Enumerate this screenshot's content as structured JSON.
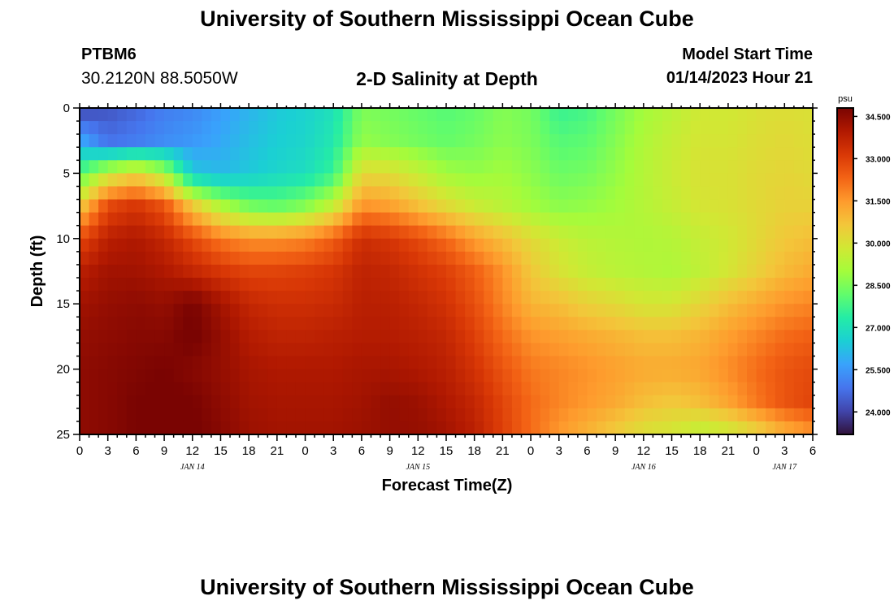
{
  "header": {
    "title": "University of Southern Mississippi Ocean Cube",
    "station": "PTBM6",
    "coordinates": "30.2120N  88.5050W",
    "subtitle": "2-D Salinity at Depth",
    "model_start_label": "Model Start Time",
    "model_start_time": "01/14/2023 Hour 21"
  },
  "footer": {
    "title": "University of Southern Mississippi Ocean Cube"
  },
  "chart_data": {
    "type": "heatmap",
    "title": "2-D Salinity at Depth",
    "xlabel": "Forecast Time(Z)",
    "ylabel": "Depth (ft)",
    "x_range_hours": [
      0,
      78
    ],
    "y_range": [
      0,
      25
    ],
    "y_ticks": [
      0,
      5,
      10,
      15,
      20,
      25
    ],
    "x_ticks": [
      {
        "h": 0,
        "label": "0"
      },
      {
        "h": 3,
        "label": "3"
      },
      {
        "h": 6,
        "label": "6"
      },
      {
        "h": 9,
        "label": "9"
      },
      {
        "h": 12,
        "label": "12"
      },
      {
        "h": 15,
        "label": "15"
      },
      {
        "h": 18,
        "label": "18"
      },
      {
        "h": 21,
        "label": "21"
      },
      {
        "h": 24,
        "label": "0"
      },
      {
        "h": 27,
        "label": "3"
      },
      {
        "h": 30,
        "label": "6"
      },
      {
        "h": 33,
        "label": "9"
      },
      {
        "h": 36,
        "label": "12"
      },
      {
        "h": 39,
        "label": "15"
      },
      {
        "h": 42,
        "label": "18"
      },
      {
        "h": 45,
        "label": "21"
      },
      {
        "h": 48,
        "label": "0"
      },
      {
        "h": 51,
        "label": "3"
      },
      {
        "h": 54,
        "label": "6"
      },
      {
        "h": 57,
        "label": "9"
      },
      {
        "h": 60,
        "label": "12"
      },
      {
        "h": 63,
        "label": "15"
      },
      {
        "h": 66,
        "label": "18"
      },
      {
        "h": 69,
        "label": "21"
      },
      {
        "h": 72,
        "label": "0"
      },
      {
        "h": 75,
        "label": "3"
      },
      {
        "h": 78,
        "label": "6"
      }
    ],
    "day_labels": [
      {
        "h": 12,
        "label": "JAN 14"
      },
      {
        "h": 36,
        "label": "JAN 15"
      },
      {
        "h": 60,
        "label": "JAN 16"
      },
      {
        "h": 75,
        "label": "JAN 17"
      }
    ],
    "colorbar": {
      "unit": "psu",
      "min": 23.2,
      "max": 34.8,
      "ticks": [
        "34.500",
        "33.000",
        "31.500",
        "30.000",
        "28.500",
        "27.000",
        "25.500",
        "24.000"
      ],
      "colors": [
        "#30123b",
        "#4145ab",
        "#4675ed",
        "#39a2fc",
        "#1bcfd4",
        "#24eca6",
        "#61fc6c",
        "#a4fc3b",
        "#d1e834",
        "#f3c63a",
        "#fe9b2d",
        "#f36315",
        "#d93806",
        "#b11901",
        "#7a0402"
      ]
    },
    "salinity_grid": {
      "x_hours": [
        0,
        3,
        6,
        9,
        12,
        15,
        18,
        21,
        24,
        27,
        30,
        33,
        36,
        39,
        42,
        45,
        48,
        51,
        54,
        57,
        60,
        63,
        66,
        69,
        72,
        75,
        78
      ],
      "depths_ft": [
        0,
        2.5,
        5,
        7.5,
        10,
        12.5,
        15,
        17.5,
        20,
        22.5,
        25
      ],
      "values": [
        [
          24.0,
          24.3,
          24.6,
          25.0,
          25.2,
          25.6,
          26.0,
          26.4,
          26.6,
          27.0,
          28.5,
          28.4,
          28.2,
          28.0,
          28.2,
          28.6,
          28.4,
          27.6,
          27.8,
          28.4,
          29.0,
          29.4,
          29.8,
          29.8,
          30.0,
          30.1,
          30.0
        ],
        [
          25.8,
          24.8,
          25.0,
          25.3,
          25.5,
          25.8,
          26.2,
          26.5,
          26.7,
          27.2,
          28.8,
          28.6,
          28.4,
          28.2,
          28.4,
          28.7,
          28.5,
          28.0,
          28.1,
          28.6,
          29.2,
          29.6,
          29.9,
          29.9,
          30.1,
          30.2,
          30.1
        ],
        [
          28.0,
          29.6,
          30.3,
          29.2,
          26.4,
          26.1,
          26.4,
          26.7,
          26.9,
          27.6,
          30.2,
          30.1,
          29.6,
          29.0,
          28.8,
          29.0,
          28.7,
          28.3,
          28.4,
          28.8,
          29.3,
          29.7,
          30.0,
          30.0,
          30.2,
          30.3,
          30.2
        ],
        [
          30.5,
          32.8,
          33.2,
          32.6,
          30.6,
          29.2,
          28.4,
          28.2,
          28.6,
          29.6,
          31.6,
          31.4,
          30.8,
          30.2,
          29.7,
          29.4,
          29.0,
          28.7,
          28.8,
          29.0,
          29.3,
          29.6,
          29.9,
          30.0,
          30.2,
          30.4,
          30.4
        ],
        [
          32.8,
          33.8,
          34.0,
          33.6,
          32.8,
          32.0,
          31.6,
          31.6,
          31.8,
          32.4,
          33.4,
          33.2,
          32.8,
          32.2,
          31.4,
          30.8,
          30.2,
          29.7,
          29.4,
          29.3,
          29.2,
          29.3,
          29.6,
          29.8,
          30.2,
          30.6,
          30.8
        ],
        [
          33.8,
          34.2,
          34.2,
          34.0,
          33.6,
          33.2,
          32.9,
          32.9,
          33.0,
          33.2,
          33.7,
          33.6,
          33.3,
          33.0,
          32.4,
          31.6,
          30.6,
          30.0,
          29.6,
          29.4,
          29.3,
          29.2,
          29.5,
          29.9,
          30.4,
          30.9,
          31.2
        ],
        [
          34.2,
          34.4,
          34.5,
          34.4,
          34.8,
          34.2,
          33.6,
          33.4,
          33.4,
          33.5,
          33.8,
          33.8,
          33.6,
          33.3,
          32.7,
          31.8,
          31.0,
          30.8,
          30.4,
          30.2,
          29.9,
          29.9,
          30.3,
          30.8,
          31.2,
          31.6,
          31.8
        ],
        [
          34.4,
          34.5,
          34.6,
          34.6,
          34.9,
          34.4,
          33.9,
          33.7,
          33.7,
          33.8,
          33.9,
          33.9,
          33.8,
          33.6,
          33.0,
          32.2,
          31.6,
          31.4,
          31.2,
          31.0,
          30.8,
          30.8,
          31.0,
          31.4,
          31.8,
          32.2,
          32.4
        ],
        [
          34.5,
          34.6,
          34.7,
          34.8,
          34.6,
          34.4,
          34.1,
          34.0,
          34.0,
          34.0,
          34.1,
          34.1,
          34.0,
          33.8,
          33.3,
          32.6,
          32.0,
          31.8,
          31.6,
          31.4,
          31.2,
          31.2,
          31.3,
          31.7,
          32.2,
          32.6,
          32.8
        ],
        [
          34.5,
          34.6,
          34.8,
          34.9,
          34.8,
          34.5,
          34.2,
          34.1,
          34.1,
          34.1,
          34.2,
          34.4,
          34.3,
          34.0,
          33.6,
          32.9,
          32.2,
          31.8,
          31.5,
          31.2,
          30.8,
          30.6,
          30.8,
          31.3,
          32.0,
          32.6,
          32.9
        ],
        [
          34.5,
          34.6,
          34.8,
          34.9,
          34.9,
          34.6,
          34.3,
          34.2,
          34.2,
          34.2,
          34.3,
          34.4,
          34.4,
          34.2,
          33.8,
          33.0,
          32.2,
          31.5,
          31.0,
          30.5,
          30.0,
          29.8,
          29.4,
          29.6,
          30.2,
          31.0,
          31.5
        ]
      ]
    }
  }
}
